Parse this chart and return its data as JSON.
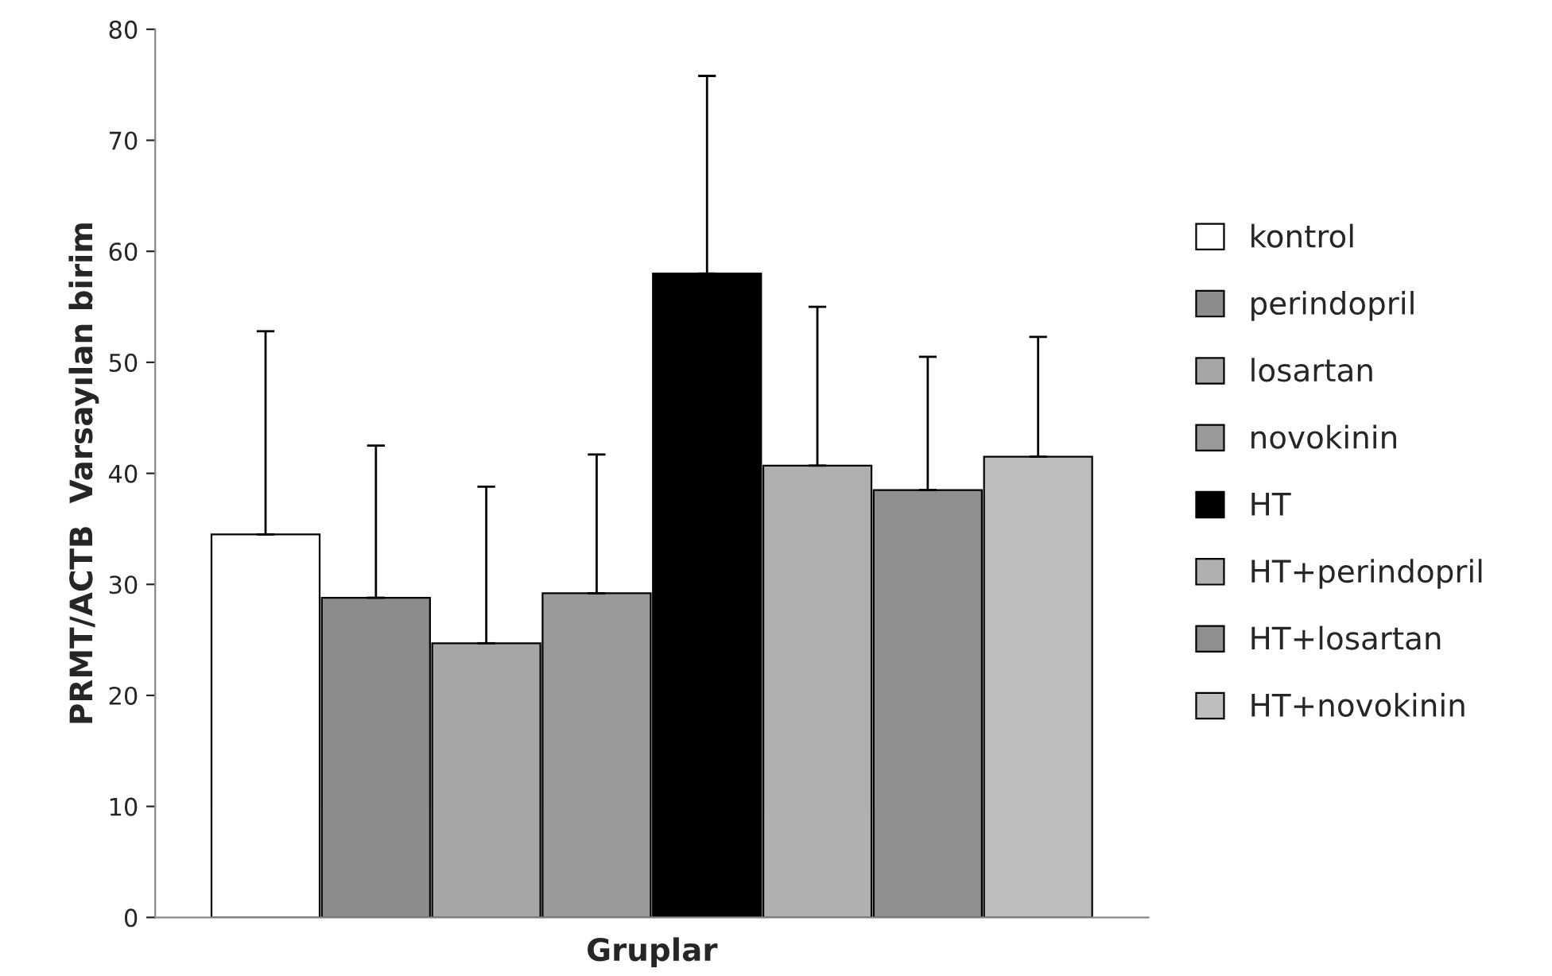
{
  "chart_data": {
    "type": "bar",
    "xlabel": "Gruplar",
    "ylabel": "PRMT/ACTB  Varsayılan birim",
    "categories": [
      null
    ],
    "series": [
      {
        "name": "kontrol",
        "color": "#ffffff",
        "values": [
          34.5
        ],
        "errors": [
          [
            34.5,
            52.8
          ]
        ]
      },
      {
        "name": "perindopril",
        "color": "#8c8c8c",
        "values": [
          28.8
        ],
        "errors": [
          [
            28.8,
            42.5
          ]
        ]
      },
      {
        "name": "losartan",
        "color": "#a6a6a6",
        "values": [
          24.7
        ],
        "errors": [
          [
            24.7,
            38.8
          ]
        ]
      },
      {
        "name": "novokinin",
        "color": "#9a9a9a",
        "values": [
          29.2
        ],
        "errors": [
          [
            29.2,
            41.7
          ]
        ]
      },
      {
        "name": "HT",
        "color": "#000000",
        "values": [
          58
        ],
        "errors": [
          [
            58,
            75.8
          ]
        ]
      },
      {
        "name": "HT+perindopril",
        "color": "#b0b0b0",
        "values": [
          40.7
        ],
        "errors": [
          [
            40.7,
            55
          ]
        ]
      },
      {
        "name": "HT+losartan",
        "color": "#8f8f8f",
        "values": [
          38.5
        ],
        "errors": [
          [
            38.5,
            50.5
          ]
        ]
      },
      {
        "name": "HT+novokinin",
        "color": "#bdbdbd",
        "values": [
          41.5
        ],
        "errors": [
          [
            41.5,
            52.3
          ]
        ]
      }
    ],
    "ylim": [
      0,
      80
    ],
    "yticks": [
      0,
      10,
      20,
      30,
      40,
      50,
      60,
      70,
      80
    ],
    "grid": false,
    "legend": "right"
  }
}
